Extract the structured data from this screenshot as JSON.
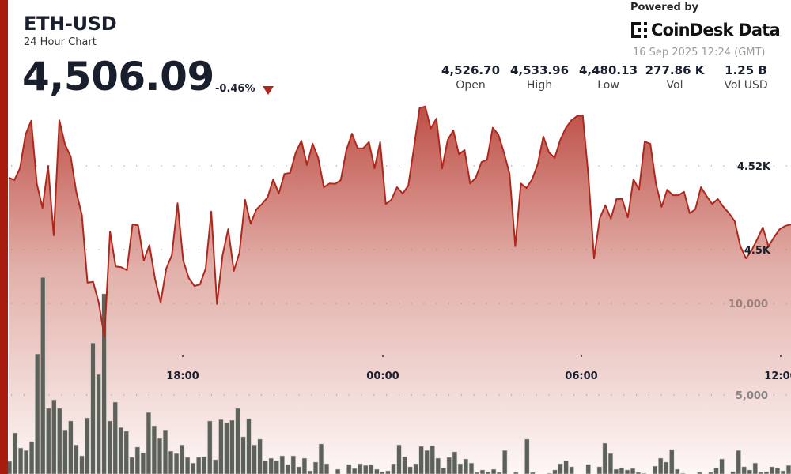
{
  "header": {
    "symbol": "ETH-USD",
    "subtitle": "24 Hour Chart",
    "price": "4,506.09",
    "change": "-0.46%",
    "change_direction": "down",
    "powered_by": "Powered by",
    "brand": "CoinDesk Data",
    "timestamp": "16 Sep 2025 12:24 (GMT)"
  },
  "stats": [
    {
      "value": "4,526.70",
      "label": "Open"
    },
    {
      "value": "4,533.96",
      "label": "High"
    },
    {
      "value": "4,480.13",
      "label": "Low"
    },
    {
      "value": "277.86 K",
      "label": "Vol"
    },
    {
      "value": "1.25 B",
      "label": "Vol USD"
    }
  ],
  "colors": {
    "accent": "#a81c10",
    "line": "#b0271b",
    "volume": "#5c625a",
    "down": "#b3241a"
  },
  "chart_data": {
    "type": "area",
    "title": "",
    "x_ticks": [
      "18:00",
      "00:00",
      "06:00",
      "12:00"
    ],
    "price_axis": {
      "ticks": [
        4500,
        4520
      ],
      "tick_labels": [
        "4.5K",
        "4.52K"
      ]
    },
    "volume_axis": {
      "ticks": [
        5000,
        10000
      ],
      "tick_labels": [
        "5,000",
        "10,000"
      ]
    },
    "grid": true,
    "series": [
      {
        "type": "area",
        "values": [
          4517.2,
          4516.6,
          4519.4,
          4527.5,
          4530.8,
          4515.7,
          4510.0,
          4520.0,
          4503.4,
          4530.9,
          4525.1,
          4522.3,
          4513.8,
          4508.3,
          4492.1,
          4492.3,
          4487.4,
          4479.1,
          4504.3,
          4496.0,
          4495.8,
          4495.1,
          4506.0,
          4505.8,
          4497.4,
          4501.1,
          4493.0,
          4487.4,
          4495.5,
          4498.7,
          4511.1,
          4497.4,
          4493.2,
          4491.3,
          4491.7,
          4495.5,
          4509.1,
          4487.0,
          4498.7,
          4504.9,
          4494.9,
          4499.2,
          4511.9,
          4506.2,
          4509.6,
          4510.9,
          4512.5,
          4516.8,
          4513.4,
          4518.1,
          4518.3,
          4523.2,
          4526.0,
          4520.2,
          4525.3,
          4521.9,
          4514.9,
          4515.8,
          4515.7,
          4516.6,
          4523.8,
          4527.7,
          4524.2,
          4524.2,
          4525.7,
          4519.4,
          4525.7,
          4510.9,
          4511.9,
          4514.9,
          4513.4,
          4515.3,
          4524.3,
          4533.8,
          4534.2,
          4528.9,
          4531.3,
          4519.4,
          4526.2,
          4528.5,
          4522.8,
          4523.8,
          4515.8,
          4517.2,
          4520.9,
          4521.5,
          4529.1,
          4527.5,
          4523.2,
          4518.1,
          4500.8,
          4515.8,
          4514.7,
          4516.8,
          4520.4,
          4527.0,
          4523.2,
          4521.9,
          4526.2,
          4529.1,
          4530.9,
          4531.9,
          4532.1,
          4517.5,
          4497.9,
          4507.4,
          4510.6,
          4507.4,
          4512.1,
          4512.1,
          4507.7,
          4516.8,
          4514.3,
          4525.8,
          4525.3,
          4515.8,
          4510.2,
          4514.3,
          4513.0,
          4513.0,
          4513.8,
          4508.7,
          4509.6,
          4514.9,
          4512.8,
          4510.9,
          4512.1,
          4510.2,
          4508.7,
          4506.8,
          4500.8,
          4497.9,
          4499.8,
          4502.5,
          4505.3,
          4500.8,
          4503.0,
          4504.9,
          4505.7,
          4506.0
        ]
      },
      {
        "type": "bar",
        "values": [
          1380,
          2930,
          2110,
          1980,
          2460,
          7240,
          11420,
          4270,
          4740,
          4270,
          3100,
          3580,
          2280,
          1680,
          3750,
          7840,
          6120,
          10520,
          3580,
          4610,
          3230,
          3020,
          1600,
          2160,
          1850,
          4050,
          3320,
          2630,
          3100,
          1940,
          1810,
          2280,
          1600,
          1290,
          1600,
          1640,
          3580,
          1470,
          3660,
          3490,
          3620,
          4270,
          2720,
          3710,
          2280,
          2590,
          1420,
          1550,
          1420,
          1680,
          1210,
          1680,
          1080,
          1550,
          860,
          1340,
          2330,
          1250,
          500,
          950,
          500,
          1210,
          990,
          1250,
          1160,
          1210,
          950,
          820,
          860,
          1250,
          2280,
          1640,
          1080,
          1250,
          2200,
          1980,
          2240,
          1550,
          1030,
          1600,
          1900,
          1250,
          1510,
          1290,
          780,
          910,
          820,
          950,
          780,
          1980,
          500,
          780,
          500,
          2590,
          780,
          500,
          500,
          730,
          910,
          1250,
          1420,
          1080,
          500,
          500,
          1210,
          500,
          1080,
          2370,
          1810,
          950,
          1030,
          910,
          990,
          780,
          730,
          500,
          1120,
          1550,
          1340,
          2030,
          950,
          730,
          500,
          500,
          780,
          500,
          780,
          1030,
          1510,
          500,
          820,
          1980,
          1080,
          910,
          1290,
          780,
          820,
          1080,
          1030,
          860,
          1160
        ]
      }
    ]
  }
}
